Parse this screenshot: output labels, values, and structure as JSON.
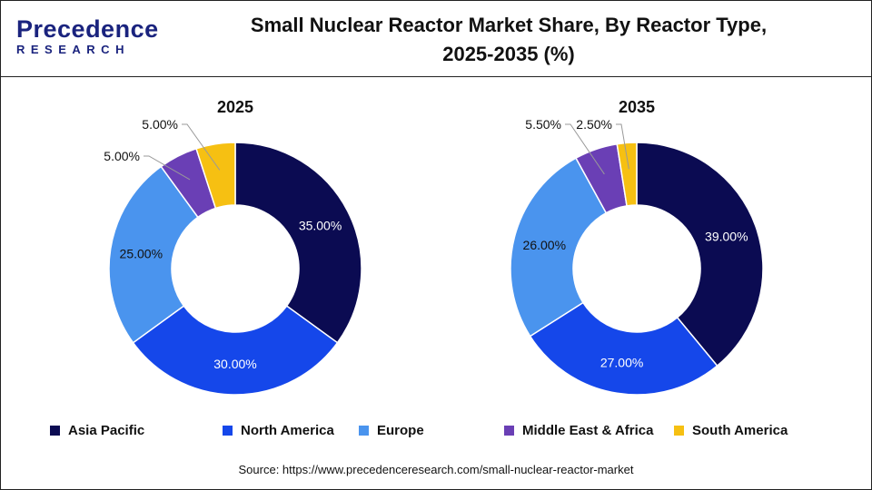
{
  "header": {
    "title_line1": "Small Nuclear Reactor Market Share, By Reactor Type,",
    "title_line2": "2025-2035 (%)"
  },
  "logo": {
    "line1": "Precedence",
    "line2": "RESEARCH"
  },
  "source": "Source: https://www.precedenceresearch.com/small-nuclear-reactor-market",
  "chart_data": [
    {
      "type": "donut",
      "title": "2025",
      "categories": [
        "Asia Pacific",
        "North America",
        "Europe",
        "Middle East & Africa",
        "South America"
      ],
      "values": [
        35,
        30,
        25,
        5,
        5
      ],
      "labels": [
        "35.00%",
        "30.00%",
        "25.00%",
        "5.00%",
        "5.00%"
      ]
    },
    {
      "type": "donut",
      "title": "2035",
      "categories": [
        "Asia Pacific",
        "North America",
        "Europe",
        "Middle East & Africa",
        "South America"
      ],
      "values": [
        39,
        27,
        26,
        5.5,
        2.5
      ],
      "labels": [
        "39.00%",
        "27.00%",
        "26.00%",
        "5.50%",
        "2.50%"
      ]
    }
  ],
  "legend": {
    "placement": "bottom",
    "items": [
      {
        "label": "Asia Pacific",
        "color": "#0b0b52"
      },
      {
        "label": "North America",
        "color": "#1547ea"
      },
      {
        "label": "Europe",
        "color": "#4a94ee"
      },
      {
        "label": "Middle East & Africa",
        "color": "#6a3fb5"
      },
      {
        "label": "South America",
        "color": "#f6c012"
      }
    ]
  }
}
